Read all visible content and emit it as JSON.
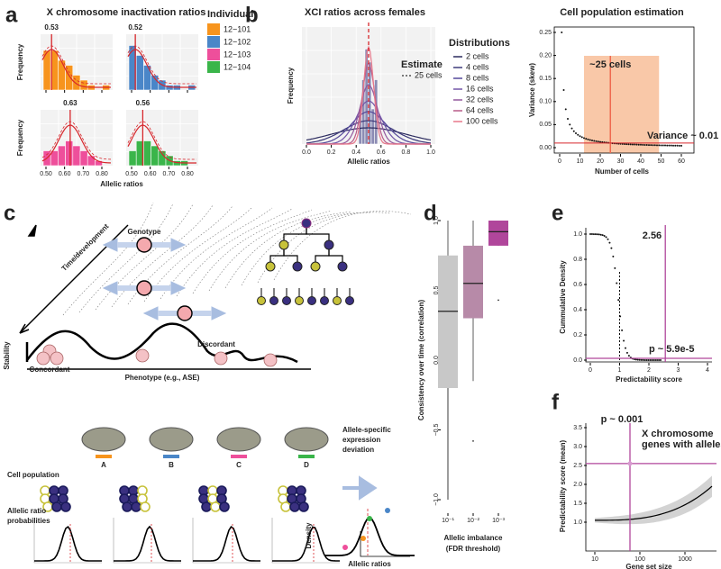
{
  "panel_a": {
    "label": "a",
    "title": "X chromosome inactivation ratios",
    "legend_title": "Individual",
    "individuals": [
      {
        "name": "12−101",
        "color": "#f7941d",
        "ratio": "0.53"
      },
      {
        "name": "12−102",
        "color": "#4a86c8",
        "ratio": "0.52"
      },
      {
        "name": "12−103",
        "color": "#ee4f9b",
        "ratio": "0.63"
      },
      {
        "name": "12−104",
        "color": "#3ab54a",
        "ratio": "0.56"
      }
    ],
    "x_ticks": [
      "0.50",
      "0.60",
      "0.70",
      "0.80"
    ],
    "x_label": "Allelic ratios",
    "y_label": "Frequency"
  },
  "panel_b": {
    "label": "b",
    "title": "XCI ratios across females",
    "x_ticks": [
      "0.0",
      "0.2",
      "0.4",
      "0.6",
      "0.8",
      "1.0"
    ],
    "x_label": "Allelic ratios",
    "y_label": "Frequency",
    "estimate_title": "Estimate",
    "estimate": "25 cells",
    "distributions_title": "Distributions",
    "distributions": [
      {
        "name": "2 cells",
        "color": "#2b2a5e"
      },
      {
        "name": "4 cells",
        "color": "#3d3a7a"
      },
      {
        "name": "8 cells",
        "color": "#54489a"
      },
      {
        "name": "16 cells",
        "color": "#7256a8"
      },
      {
        "name": "32 cells",
        "color": "#92589e"
      },
      {
        "name": "64 cells",
        "color": "#b85a88"
      },
      {
        "name": "100 cells",
        "color": "#e8788a"
      }
    ],
    "right_title": "Cell population estimation",
    "right_y_ticks": [
      "0.00",
      "0.05",
      "0.10",
      "0.15",
      "0.20",
      "0.25"
    ],
    "right_x_ticks": [
      "0",
      "10",
      "20",
      "30",
      "40",
      "50",
      "60"
    ],
    "right_x_label": "Number of cells",
    "right_y_label": "Variance (skew)",
    "cells_note": "~25 cells",
    "variance_note": "Variance ~ 0.01"
  },
  "panel_c": {
    "label": "c",
    "genotype": "Genotype",
    "time": "Time/development",
    "stability": "Stability",
    "concordant": "Concordant",
    "discordant": "Discordant",
    "phenotype": "Phenotype (e.g., ASE)",
    "individuals": [
      "A",
      "B",
      "C",
      "D"
    ],
    "cell_population": "Cell population",
    "probabilities": [
      "Allelic ratio",
      "probabilities"
    ],
    "deviation": [
      "Allele-specific",
      "expression",
      "deviation"
    ],
    "density": "Density",
    "allelic_ratios": "Allelic ratios"
  },
  "panel_d": {
    "label": "d",
    "y_label": "Consistency over time (correlation)",
    "y_ticks": [
      "−1.0",
      "−0.5",
      "0.0",
      "0.5",
      "1.0"
    ],
    "x_ticks": [
      "10⁻¹",
      "10⁻²",
      "10⁻³"
    ],
    "x_label": [
      "Allelic imbalance",
      "(FDR threshold)"
    ]
  },
  "panel_e": {
    "label": "e",
    "score": "2.56",
    "p_value": "p ~ 5.9e-5",
    "y_label": "Cummulative Density",
    "x_label": "Predictability score",
    "y_ticks": [
      "0.0",
      "0.2",
      "0.4",
      "0.6",
      "0.8",
      "1.0"
    ],
    "x_ticks": [
      "0",
      "1",
      "2",
      "3",
      "4"
    ]
  },
  "panel_f": {
    "label": "f",
    "p_value": "p ~ 0.001",
    "note": [
      "X chromosome",
      "genes with alleles"
    ],
    "y_label": "Predictability score (mean)",
    "x_label": "Gene set size",
    "y_ticks": [
      "1.0",
      "1.5",
      "2.0",
      "2.5",
      "3.0",
      "3.5"
    ],
    "x_ticks": [
      "10",
      "100",
      "1000"
    ]
  }
}
